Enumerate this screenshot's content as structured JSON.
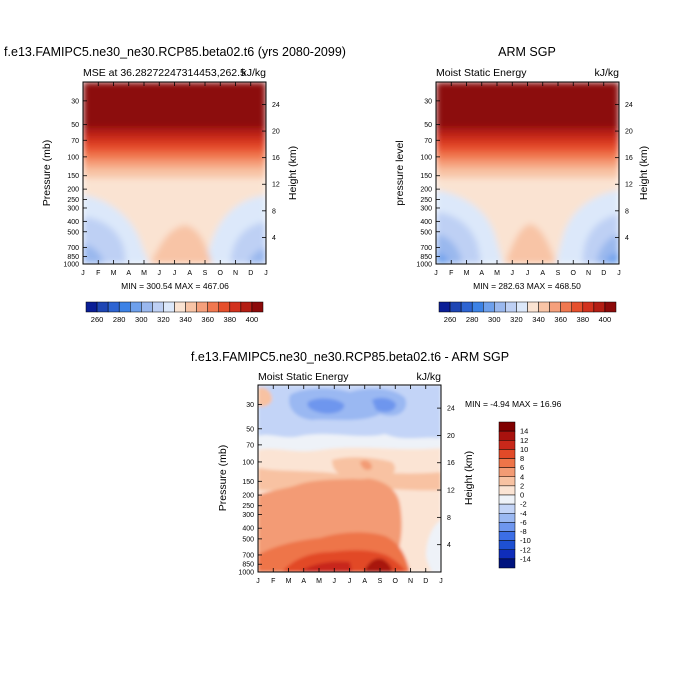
{
  "palette": {
    "absolute": [
      "#0a1e96",
      "#1e46b4",
      "#2d64d2",
      "#3c82e6",
      "#6ea0ec",
      "#9ab8ee",
      "#bed0f4",
      "#dce8fa",
      "#fae3d2",
      "#f8c4a6",
      "#f5a07c",
      "#f07850",
      "#e6502d",
      "#d2321e",
      "#b41e14",
      "#8c0a0a"
    ],
    "diff": [
      "#00137e",
      "#0f2dba",
      "#1e50d2",
      "#3c6ee6",
      "#6e96ee",
      "#9ab8f2",
      "#c3d4f7",
      "#eef2f8",
      "#fbe4d4",
      "#f8c2a2",
      "#f39b74",
      "#ee7448",
      "#e24a28",
      "#c8281a",
      "#a8120e",
      "#800000"
    ]
  },
  "chart_data": [
    {
      "id": "model",
      "type": "heatmap",
      "title": "f.e13.FAMIPC5.ne30_ne30.RCP85.beta02.t6 (yrs 2080-2099)",
      "subtitle_left": "MSE at 36.28272247314453,262.5",
      "subtitle_right": "kJ/kg",
      "ylabel": "Pressure (mb)",
      "ylabel_right": "Height (km)",
      "x": [
        "J",
        "F",
        "M",
        "A",
        "M",
        "J",
        "J",
        "A",
        "S",
        "O",
        "N",
        "D",
        "J"
      ],
      "pressure_ticks": [
        30,
        50,
        70,
        100,
        150,
        200,
        250,
        300,
        400,
        500,
        700,
        850,
        1000
      ],
      "height_ticks": [
        4,
        8,
        12,
        16,
        20,
        24
      ],
      "ylim": [
        1000,
        20
      ],
      "stats": "MIN = 300.54  MAX = 467.06",
      "min": 300.54,
      "max": 467.06,
      "levels": [
        260,
        270,
        280,
        290,
        300,
        310,
        320,
        330,
        340,
        350,
        360,
        370,
        380,
        390,
        400
      ],
      "colorbar_labels": [
        "260",
        "280",
        "300",
        "320",
        "340",
        "360",
        "380",
        "400"
      ],
      "colorbar_orientation": "horizontal"
    },
    {
      "id": "obs",
      "type": "heatmap",
      "title": "ARM SGP",
      "subtitle_left": "Moist Static Energy",
      "subtitle_right": "kJ/kg",
      "ylabel": "pressure level",
      "ylabel_right": "Height (km)",
      "x": [
        "J",
        "F",
        "M",
        "A",
        "M",
        "J",
        "J",
        "A",
        "S",
        "O",
        "N",
        "D",
        "J"
      ],
      "pressure_ticks": [
        30,
        50,
        70,
        100,
        150,
        200,
        250,
        300,
        400,
        500,
        700,
        850,
        1000
      ],
      "height_ticks": [
        4,
        8,
        12,
        16,
        20,
        24
      ],
      "ylim": [
        1000,
        20
      ],
      "stats": "MIN = 282.63  MAX = 468.50",
      "min": 282.63,
      "max": 468.5,
      "levels": [
        260,
        270,
        280,
        290,
        300,
        310,
        320,
        330,
        340,
        350,
        360,
        370,
        380,
        390,
        400
      ],
      "colorbar_labels": [
        "260",
        "280",
        "300",
        "320",
        "340",
        "360",
        "380",
        "400"
      ],
      "colorbar_orientation": "horizontal"
    },
    {
      "id": "diff",
      "type": "heatmap",
      "title": "f.e13.FAMIPC5.ne30_ne30.RCP85.beta02.t6 - ARM SGP",
      "subtitle_left": "Moist Static Energy",
      "subtitle_right": "kJ/kg",
      "ylabel": "Pressure (mb)",
      "ylabel_right": "Height (km)",
      "x": [
        "J",
        "F",
        "M",
        "A",
        "M",
        "J",
        "J",
        "A",
        "S",
        "O",
        "N",
        "D",
        "J"
      ],
      "pressure_ticks": [
        30,
        50,
        70,
        100,
        150,
        200,
        250,
        300,
        400,
        500,
        700,
        850,
        1000
      ],
      "height_ticks": [
        4,
        8,
        12,
        16,
        20,
        24
      ],
      "ylim": [
        1000,
        20
      ],
      "stats": "MIN =  -4.94 MAX =  16.96",
      "min": -4.94,
      "max": 16.96,
      "levels": [
        -14,
        -12,
        -10,
        -8,
        -6,
        -4,
        -2,
        0,
        2,
        4,
        6,
        8,
        10,
        12,
        14
      ],
      "colorbar_labels": [
        "14",
        "12",
        "10",
        "8",
        "6",
        "4",
        "2",
        "0",
        "-2",
        "-4",
        "-6",
        "-8",
        "-10",
        "-12",
        "-14"
      ],
      "colorbar_orientation": "vertical"
    }
  ]
}
